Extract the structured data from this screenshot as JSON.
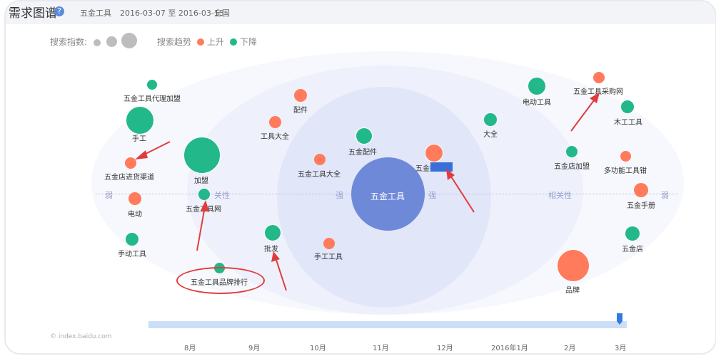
{
  "header": {
    "title": "需求图谱",
    "help_icon": "?",
    "keyword": "五金工具",
    "date_range": "2016-03-07 至 2016-03-13",
    "region": "全国"
  },
  "legend": {
    "index_label": "搜索指数:",
    "trend_label": "搜索趋势",
    "up": "上升",
    "down": "下降",
    "up_color": "#ff7b5b",
    "down_color": "#22b88a",
    "size_color": "#b8b8b8"
  },
  "graph": {
    "center": "五金工具",
    "axis": {
      "weak_left": "弱",
      "related_left": "关性",
      "strong_left": "强",
      "strong_right": "强",
      "related_right": "相关性",
      "weak_right": "弱"
    },
    "nodes": [
      {
        "label": "五金工具代理加盟",
        "trend": "down"
      },
      {
        "label": "手工",
        "trend": "down"
      },
      {
        "label": "五金店进货渠道",
        "trend": "up"
      },
      {
        "label": "加盟",
        "trend": "down"
      },
      {
        "label": "电动",
        "trend": "up"
      },
      {
        "label": "五金工具网",
        "trend": "down"
      },
      {
        "label": "手动工具",
        "trend": "down"
      },
      {
        "label": "五金工具品牌排行",
        "trend": "down"
      },
      {
        "label": "配件",
        "trend": "up"
      },
      {
        "label": "工具大全",
        "trend": "up"
      },
      {
        "label": "五金配件",
        "trend": "down"
      },
      {
        "label": "五金工具大全",
        "trend": "up"
      },
      {
        "label": "批发",
        "trend": "down"
      },
      {
        "label": "手工工具",
        "trend": "up"
      },
      {
        "label": "五金批发网",
        "trend": "up"
      },
      {
        "label": "大全",
        "trend": "down"
      },
      {
        "label": "电动工具",
        "trend": "down"
      },
      {
        "label": "五金工具采购网",
        "trend": "up"
      },
      {
        "label": "木工工具",
        "trend": "down"
      },
      {
        "label": "五金店加盟",
        "trend": "down"
      },
      {
        "label": "多功能工具钳",
        "trend": "up"
      },
      {
        "label": "五金手册",
        "trend": "up"
      },
      {
        "label": "五金店",
        "trend": "down"
      },
      {
        "label": "品牌",
        "trend": "up"
      }
    ]
  },
  "timeline": {
    "months": [
      "8月",
      "9月",
      "10月",
      "11月",
      "12月",
      "2016年1月",
      "2月",
      "3月"
    ]
  },
  "watermark": "© index.baidu.com"
}
